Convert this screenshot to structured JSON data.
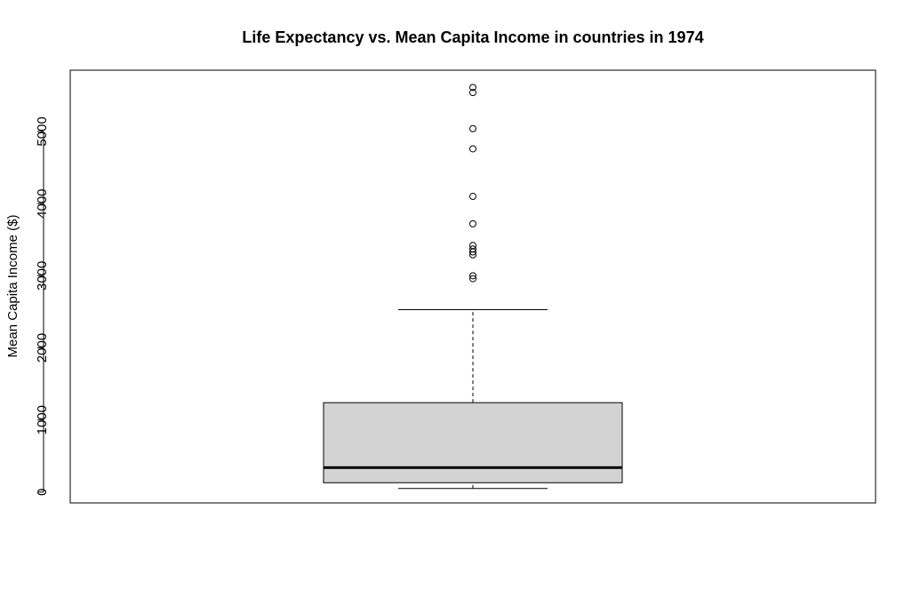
{
  "chart_data": {
    "type": "boxplot",
    "title": "Life Expectancy vs. Mean Capita Income in countries in 1974",
    "xlabel": "",
    "ylabel": "Mean Capita Income ($)",
    "ylim": [
      -150,
      5850
    ],
    "yticks": [
      0,
      1000,
      2000,
      3000,
      4000,
      5000
    ],
    "ytick_labels": [
      "0",
      "1000",
      "2000",
      "3000",
      "4000",
      "5000"
    ],
    "grid": false,
    "box": {
      "whisker_low": 50,
      "q1": 130,
      "median": 340,
      "q3": 1240,
      "whisker_high": 2530
    },
    "outliers": [
      2960,
      3000,
      3290,
      3330,
      3370,
      3420,
      3720,
      4100,
      4760,
      5040,
      5540,
      5610
    ],
    "colors": {
      "box_fill": "#d3d3d3",
      "stroke": "#000000"
    }
  }
}
